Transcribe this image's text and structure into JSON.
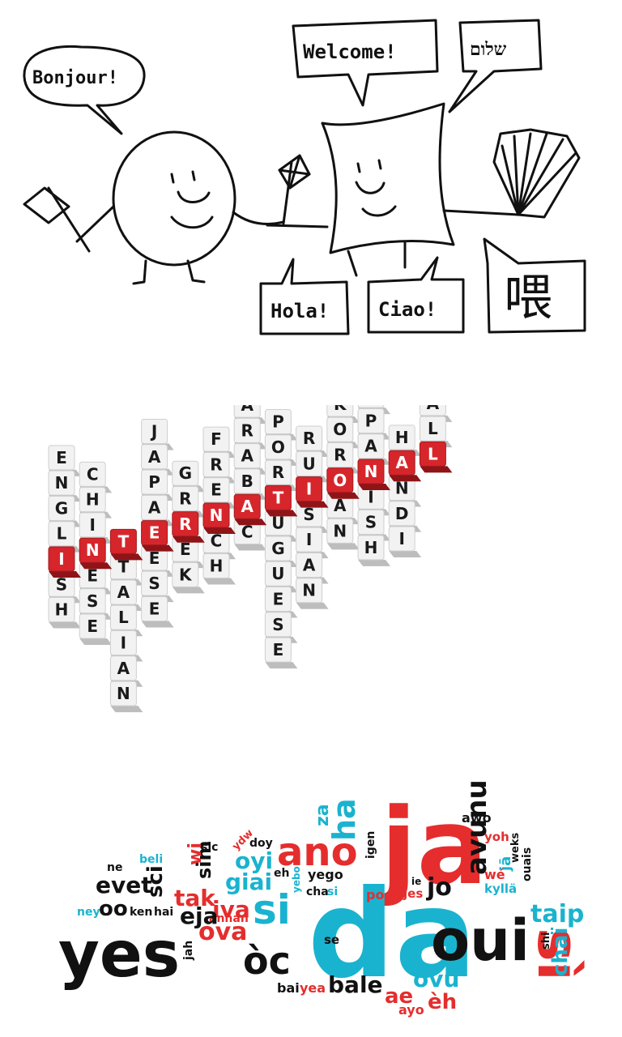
{
  "cartoon": {
    "bubbles": {
      "bonjour": "Bonjour!",
      "welcome": "Welcome!",
      "shalom": "שלום",
      "hola": "Hola!",
      "ciao": "Ciao!",
      "chinese": "喂"
    }
  },
  "crossword": {
    "highlight_word": "INTERNATIONAL",
    "vertical_words": [
      "ENGLISH",
      "CHINESE",
      "JAPANESE",
      "ITALIAN",
      "FRENCH",
      "GREEK",
      "ARABIC",
      "RUSSIAN",
      "PORTUGUESE",
      "KOREAN",
      "HINDI",
      "SPANISH",
      "BENGALI"
    ],
    "colors": {
      "highlight": "#d6262b",
      "cube": "#f2f2f2",
      "letter": "#1a1a1a"
    }
  },
  "word_cloud": {
    "colors": {
      "red": "#e52d2d",
      "cyan": "#1ab3cf",
      "black": "#111111"
    },
    "words": [
      "ja",
      "da",
      "yes",
      "oui",
      "si",
      "sì",
      "ano",
      "òc",
      "ha",
      "avunu",
      "taip",
      "chaï",
      "ovu",
      "èh",
      "ae",
      "ayo",
      "bale",
      "yea",
      "bai",
      "se",
      "jo",
      "jes",
      "po",
      "cha",
      "si",
      "yebo",
      "yego",
      "eh",
      "igen",
      "oyi",
      "giai",
      "iva",
      "ova",
      "anhan",
      "jah",
      "eja",
      "tak",
      "sim",
      "wi",
      "sic",
      "beli",
      "sci",
      "evet",
      "ne",
      "oo",
      "ken",
      "hai",
      "ney",
      "doy",
      "ydw",
      "za",
      "awo",
      "yoh",
      "weks",
      "ouais",
      "jā",
      "wé",
      "kyllä",
      "shi",
      "ie"
    ]
  }
}
